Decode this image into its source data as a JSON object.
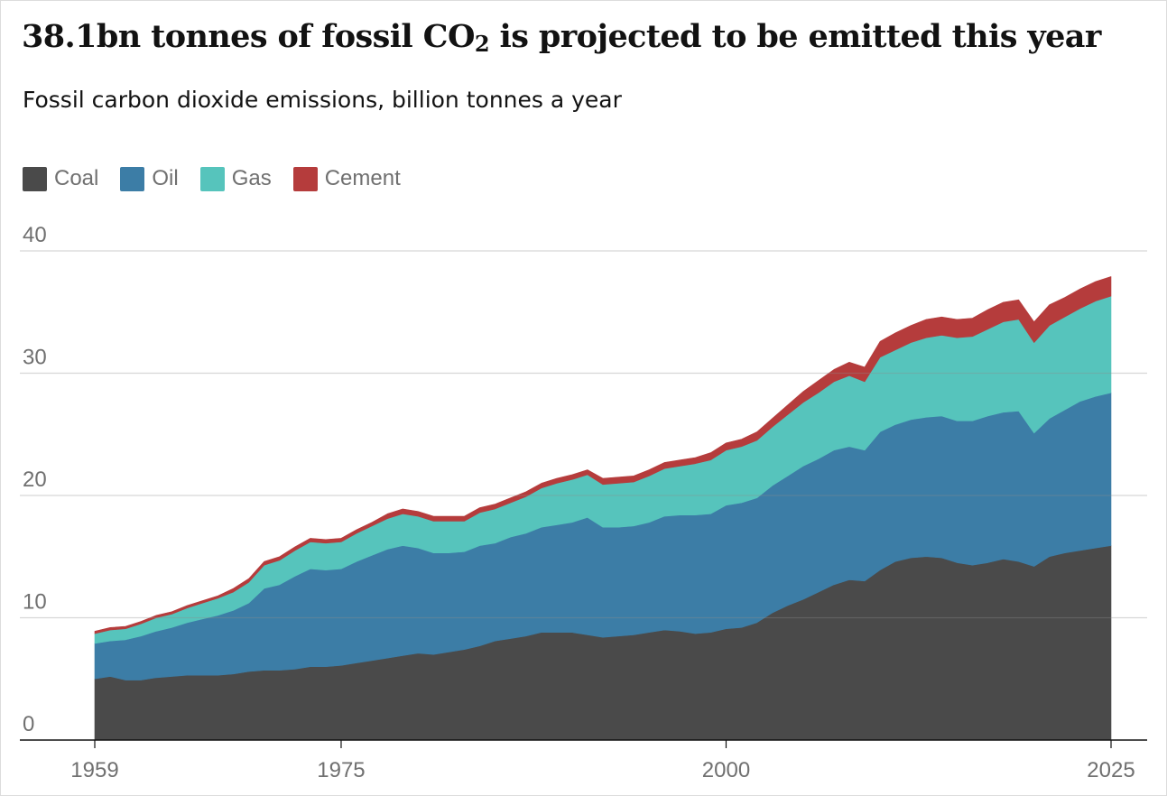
{
  "title_main": "38.1bn tonnes of fossil CO",
  "title_sub": "2",
  "title_rest": " is projected to be emitted this year",
  "subtitle": "Fossil carbon dioxide emissions, billion tonnes a year",
  "chart_data": {
    "type": "area",
    "stacked": true,
    "title": "38.1bn tonnes of fossil CO2 is projected to be emitted this year",
    "subtitle": "Fossil carbon dioxide emissions, billion tonnes a year",
    "ylim": [
      0,
      40
    ],
    "xlim": [
      1959,
      2025
    ],
    "y_ticks": [
      0,
      10,
      20,
      30,
      40
    ],
    "x_ticks": [
      1959,
      1975,
      2000,
      2025
    ],
    "grid": "horizontal",
    "legend_position": "top-left",
    "x": [
      1959,
      1960,
      1961,
      1962,
      1963,
      1964,
      1965,
      1966,
      1967,
      1968,
      1969,
      1970,
      1971,
      1972,
      1973,
      1974,
      1975,
      1976,
      1977,
      1978,
      1979,
      1980,
      1981,
      1982,
      1983,
      1984,
      1985,
      1986,
      1987,
      1988,
      1989,
      1990,
      1991,
      1992,
      1993,
      1994,
      1995,
      1996,
      1997,
      1998,
      1999,
      2000,
      2001,
      2002,
      2003,
      2004,
      2005,
      2006,
      2007,
      2008,
      2009,
      2010,
      2011,
      2012,
      2013,
      2014,
      2015,
      2016,
      2017,
      2018,
      2019,
      2020,
      2021,
      2022,
      2023,
      2024,
      2025
    ],
    "series": [
      {
        "name": "Coal",
        "color": "#4a4a4a",
        "values": [
          5.0,
          5.2,
          4.9,
          4.9,
          5.1,
          5.2,
          5.3,
          5.3,
          5.3,
          5.4,
          5.6,
          5.7,
          5.7,
          5.8,
          6.0,
          6.0,
          6.1,
          6.3,
          6.5,
          6.7,
          6.9,
          7.1,
          7.0,
          7.2,
          7.4,
          7.7,
          8.1,
          8.3,
          8.5,
          8.8,
          8.8,
          8.8,
          8.6,
          8.4,
          8.5,
          8.6,
          8.8,
          9.0,
          8.9,
          8.7,
          8.8,
          9.1,
          9.2,
          9.6,
          10.4,
          11.0,
          11.5,
          12.1,
          12.7,
          13.1,
          13.0,
          13.9,
          14.6,
          14.9,
          15.0,
          14.9,
          14.5,
          14.3,
          14.5,
          14.8,
          14.6,
          14.2,
          15.0,
          15.3,
          15.5,
          15.7,
          15.9
        ]
      },
      {
        "name": "Oil",
        "color": "#3c7da6",
        "values": [
          2.9,
          2.9,
          3.3,
          3.6,
          3.8,
          4.0,
          4.3,
          4.6,
          4.9,
          5.2,
          5.6,
          6.7,
          7.0,
          7.6,
          8.0,
          7.9,
          7.9,
          8.3,
          8.6,
          8.9,
          9.0,
          8.6,
          8.3,
          8.1,
          8.0,
          8.2,
          8.0,
          8.3,
          8.4,
          8.6,
          8.8,
          9.0,
          9.6,
          9.0,
          8.9,
          8.9,
          9.0,
          9.3,
          9.5,
          9.7,
          9.7,
          10.1,
          10.2,
          10.2,
          10.4,
          10.6,
          10.9,
          10.9,
          11.0,
          10.9,
          10.7,
          11.3,
          11.2,
          11.3,
          11.4,
          11.6,
          11.6,
          11.8,
          12.0,
          12.0,
          12.3,
          10.9,
          11.3,
          11.7,
          12.2,
          12.4,
          12.5
        ]
      },
      {
        "name": "Gas",
        "color": "#56c4bc",
        "values": [
          0.8,
          0.9,
          0.9,
          1.0,
          1.1,
          1.1,
          1.2,
          1.3,
          1.4,
          1.5,
          1.7,
          1.9,
          2.0,
          2.1,
          2.2,
          2.2,
          2.2,
          2.3,
          2.4,
          2.5,
          2.6,
          2.6,
          2.6,
          2.6,
          2.5,
          2.7,
          2.8,
          2.8,
          3.0,
          3.2,
          3.4,
          3.5,
          3.5,
          3.5,
          3.6,
          3.6,
          3.8,
          3.9,
          4.0,
          4.2,
          4.4,
          4.5,
          4.6,
          4.7,
          4.8,
          5.0,
          5.2,
          5.4,
          5.6,
          5.8,
          5.6,
          6.1,
          6.1,
          6.3,
          6.5,
          6.6,
          6.8,
          6.9,
          7.1,
          7.4,
          7.5,
          7.4,
          7.6,
          7.6,
          7.6,
          7.8,
          7.9
        ]
      },
      {
        "name": "Cement",
        "color": "#b53c3c",
        "values": [
          0.2,
          0.2,
          0.2,
          0.2,
          0.2,
          0.2,
          0.2,
          0.2,
          0.2,
          0.3,
          0.3,
          0.3,
          0.3,
          0.3,
          0.3,
          0.3,
          0.3,
          0.3,
          0.3,
          0.4,
          0.4,
          0.4,
          0.4,
          0.4,
          0.4,
          0.4,
          0.4,
          0.4,
          0.4,
          0.4,
          0.4,
          0.4,
          0.4,
          0.5,
          0.5,
          0.5,
          0.5,
          0.5,
          0.5,
          0.5,
          0.6,
          0.6,
          0.6,
          0.7,
          0.7,
          0.8,
          0.9,
          1.0,
          1.0,
          1.1,
          1.2,
          1.3,
          1.4,
          1.4,
          1.5,
          1.5,
          1.5,
          1.5,
          1.6,
          1.6,
          1.6,
          1.7,
          1.7,
          1.6,
          1.6,
          1.6,
          1.6
        ]
      }
    ]
  }
}
